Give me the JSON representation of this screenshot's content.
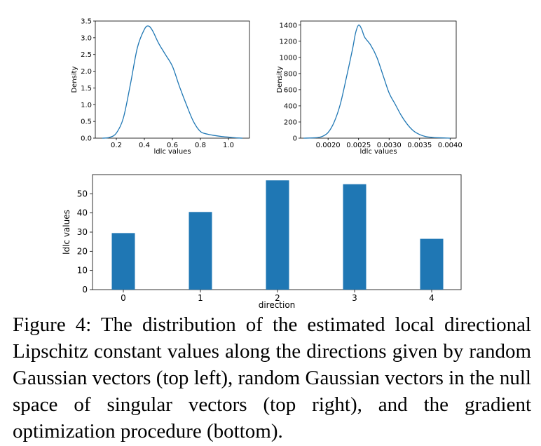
{
  "chart_data": [
    {
      "type": "line",
      "title": "",
      "xlabel": "ldlc values",
      "ylabel": "Density",
      "xlim": [
        0.05,
        1.15
      ],
      "ylim": [
        0,
        3.5
      ],
      "xticks": [
        "0.2",
        "0.4",
        "0.6",
        "0.8",
        "1.0"
      ],
      "yticks": [
        "0.0",
        "0.5",
        "1.0",
        "1.5",
        "2.0",
        "2.5",
        "3.0",
        "3.5"
      ],
      "series": [
        {
          "name": "density",
          "color": "#1f77b4",
          "x": [
            0.1,
            0.15,
            0.2,
            0.25,
            0.3,
            0.35,
            0.4,
            0.43,
            0.46,
            0.5,
            0.55,
            0.6,
            0.65,
            0.7,
            0.75,
            0.8,
            0.85,
            0.9,
            0.95,
            1.0,
            1.05,
            1.1
          ],
          "y": [
            0.0,
            0.02,
            0.15,
            0.6,
            1.6,
            2.7,
            3.25,
            3.35,
            3.2,
            2.85,
            2.5,
            2.15,
            1.55,
            1.0,
            0.5,
            0.2,
            0.12,
            0.08,
            0.05,
            0.03,
            0.01,
            0.0
          ]
        }
      ]
    },
    {
      "type": "line",
      "title": "",
      "xlabel": "ldlc values",
      "ylabel": "Density",
      "xlim": [
        0.00155,
        0.0041
      ],
      "ylim": [
        0,
        1450
      ],
      "xticks": [
        "0.0020",
        "0.0025",
        "0.0030",
        "0.0035",
        "0.0040"
      ],
      "yticks": [
        "0",
        "200",
        "400",
        "600",
        "800",
        "1000",
        "1200",
        "1400"
      ],
      "series": [
        {
          "name": "density",
          "color": "#1f77b4",
          "x": [
            0.0016,
            0.0018,
            0.0019,
            0.002,
            0.0021,
            0.0022,
            0.0023,
            0.0024,
            0.00245,
            0.0025,
            0.00255,
            0.0026,
            0.0027,
            0.0028,
            0.0029,
            0.003,
            0.0031,
            0.0032,
            0.0033,
            0.0034,
            0.0035,
            0.0036,
            0.0037,
            0.0038,
            0.004
          ],
          "y": [
            0,
            5,
            20,
            70,
            200,
            420,
            750,
            1100,
            1300,
            1400,
            1350,
            1250,
            1150,
            1000,
            780,
            560,
            420,
            280,
            170,
            90,
            45,
            20,
            10,
            5,
            0
          ]
        }
      ]
    },
    {
      "type": "bar",
      "title": "",
      "xlabel": "direction",
      "ylabel": "ldlc values",
      "ylim": [
        0,
        60
      ],
      "categories": [
        "0",
        "1",
        "2",
        "3",
        "4"
      ],
      "yticks": [
        "0",
        "10",
        "20",
        "30",
        "40",
        "50"
      ],
      "values": [
        29.5,
        40.5,
        57,
        55,
        26.5
      ],
      "color": "#1f77b4"
    }
  ],
  "caption": "Figure 4: The distribution of the estimated local directional Lipschitz constant values along the directions given by random Gaussian vectors (top left), random Gaussian vectors in the null space of singular vectors (top right), and the gradient optimization procedure (bottom)."
}
